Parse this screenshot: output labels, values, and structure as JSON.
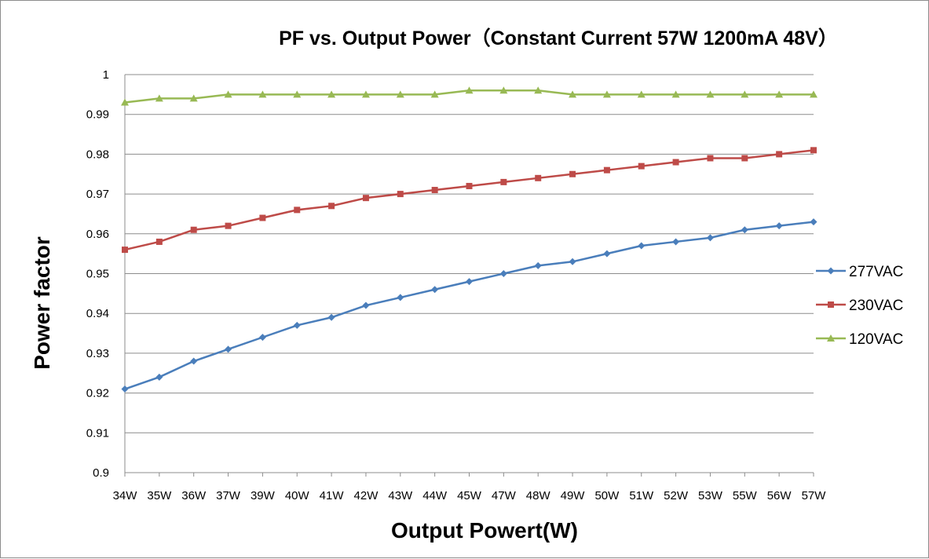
{
  "chart_data": {
    "type": "line",
    "title": "PF vs. Output Power（Constant Current 57W 1200mA 48V）",
    "xlabel": "Output Powert(W)",
    "ylabel": "Power factor",
    "ylim": [
      0.9,
      1.0
    ],
    "y_ticks": [
      "0.9",
      "0.91",
      "0.92",
      "0.93",
      "0.94",
      "0.95",
      "0.96",
      "0.97",
      "0.98",
      "0.99",
      "1"
    ],
    "grid": "horizontal",
    "legend_position": "right",
    "categories": [
      "34W",
      "35W",
      "36W",
      "37W",
      "39W",
      "40W",
      "41W",
      "42W",
      "43W",
      "44W",
      "45W",
      "47W",
      "48W",
      "49W",
      "50W",
      "51W",
      "52W",
      "53W",
      "55W",
      "56W",
      "57W"
    ],
    "series": [
      {
        "name": "277VAC",
        "color": "#4a7ebb",
        "marker": "diamond",
        "values": [
          0.921,
          0.924,
          0.928,
          0.931,
          0.934,
          0.937,
          0.939,
          0.942,
          0.944,
          0.946,
          0.948,
          0.95,
          0.952,
          0.953,
          0.955,
          0.957,
          0.958,
          0.959,
          0.961,
          0.962,
          0.963
        ]
      },
      {
        "name": "230VAC",
        "color": "#be4b48",
        "marker": "square",
        "values": [
          0.956,
          0.958,
          0.961,
          0.962,
          0.964,
          0.966,
          0.967,
          0.969,
          0.97,
          0.971,
          0.972,
          0.973,
          0.974,
          0.975,
          0.976,
          0.977,
          0.978,
          0.979,
          0.979,
          0.98,
          0.981
        ]
      },
      {
        "name": "120VAC",
        "color": "#98b954",
        "marker": "triangle",
        "values": [
          0.993,
          0.994,
          0.994,
          0.995,
          0.995,
          0.995,
          0.995,
          0.995,
          0.995,
          0.995,
          0.996,
          0.996,
          0.996,
          0.995,
          0.995,
          0.995,
          0.995,
          0.995,
          0.995,
          0.995,
          0.995
        ]
      }
    ]
  }
}
